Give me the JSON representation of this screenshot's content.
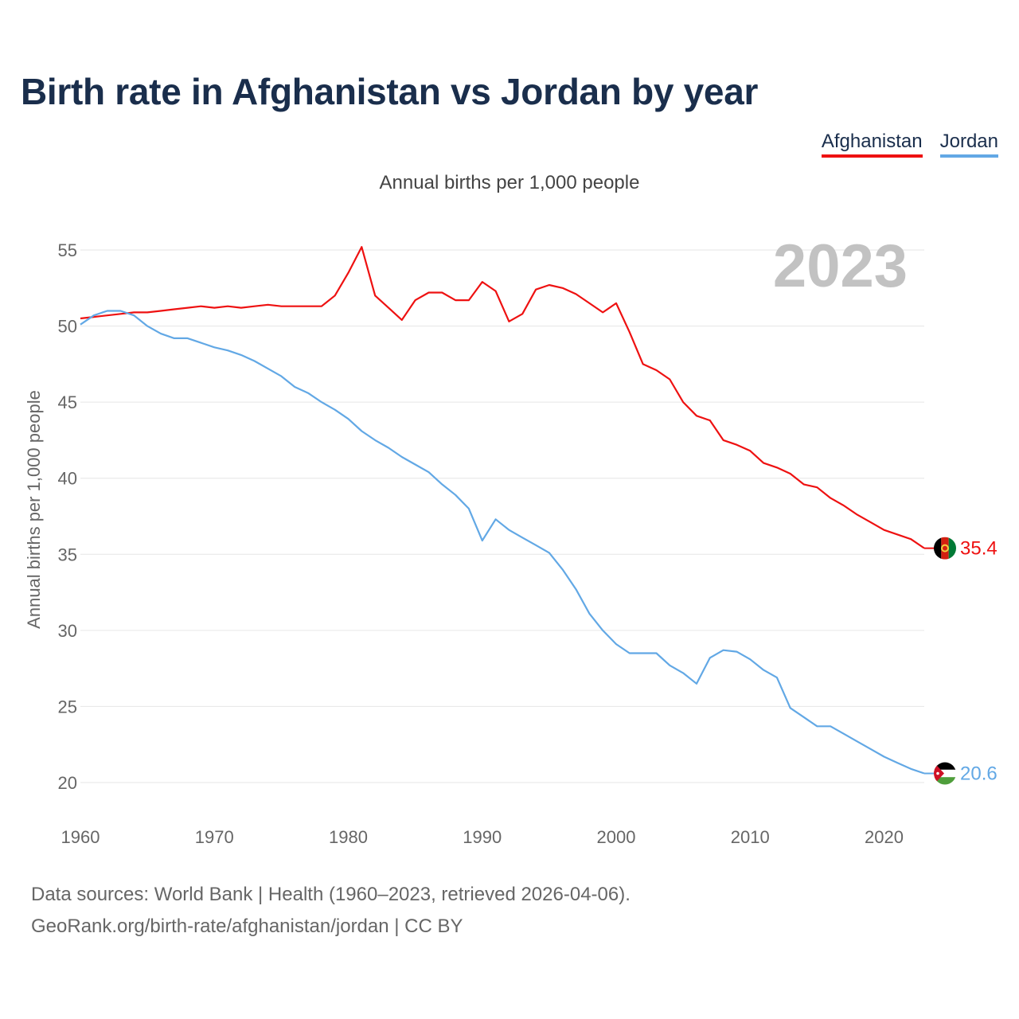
{
  "title": "Birth rate in Afghanistan vs Jordan by year",
  "legend": [
    {
      "name": "Afghanistan",
      "color": "#ee1111"
    },
    {
      "name": "Jordan",
      "color": "#62a8e5"
    }
  ],
  "subtitle": "Annual births per 1,000 people",
  "watermark_year": "2023",
  "footer": {
    "line1": "Data sources: World Bank | Health (1960–2023, retrieved 2026-04-06).",
    "line2": "GeoRank.org/birth-rate/afghanistan/jordan | CC BY"
  },
  "chart_data": {
    "type": "line",
    "title": "Birth rate in Afghanistan vs Jordan by year",
    "xlabel": "",
    "ylabel": "Annual births per 1,000 people",
    "xlim": [
      1960,
      2023
    ],
    "ylim": [
      20,
      55
    ],
    "xticks": [
      1960,
      1970,
      1980,
      1990,
      2000,
      2010,
      2020
    ],
    "yticks": [
      20,
      25,
      30,
      35,
      40,
      45,
      50,
      55
    ],
    "grid": true,
    "legend_position": "top-right",
    "x": [
      1960,
      1961,
      1962,
      1963,
      1964,
      1965,
      1966,
      1967,
      1968,
      1969,
      1970,
      1971,
      1972,
      1973,
      1974,
      1975,
      1976,
      1977,
      1978,
      1979,
      1980,
      1981,
      1982,
      1983,
      1984,
      1985,
      1986,
      1987,
      1988,
      1989,
      1990,
      1991,
      1992,
      1993,
      1994,
      1995,
      1996,
      1997,
      1998,
      1999,
      2000,
      2001,
      2002,
      2003,
      2004,
      2005,
      2006,
      2007,
      2008,
      2009,
      2010,
      2011,
      2012,
      2013,
      2014,
      2015,
      2016,
      2017,
      2018,
      2019,
      2020,
      2021,
      2022,
      2023
    ],
    "series": [
      {
        "name": "Afghanistan",
        "color": "#ee1111",
        "end_label": "35.4",
        "values": [
          50.5,
          50.6,
          50.7,
          50.8,
          50.9,
          50.9,
          51.0,
          51.1,
          51.2,
          51.3,
          51.2,
          51.3,
          51.2,
          51.3,
          51.4,
          51.3,
          51.3,
          51.3,
          51.3,
          52.0,
          53.5,
          55.2,
          52.0,
          51.2,
          50.4,
          51.7,
          52.2,
          52.2,
          51.7,
          51.7,
          52.9,
          52.3,
          50.3,
          50.8,
          52.4,
          52.7,
          52.5,
          52.1,
          51.5,
          50.9,
          51.5,
          49.6,
          47.5,
          47.1,
          46.5,
          45.0,
          44.1,
          43.8,
          42.5,
          42.2,
          41.8,
          41.0,
          40.7,
          40.3,
          39.6,
          39.4,
          38.7,
          38.2,
          37.6,
          37.1,
          36.6,
          36.3,
          36.0,
          35.4
        ]
      },
      {
        "name": "Jordan",
        "color": "#62a8e5",
        "end_label": "20.6",
        "values": [
          50.1,
          50.7,
          51.0,
          51.0,
          50.7,
          50.0,
          49.5,
          49.2,
          49.2,
          48.9,
          48.6,
          48.4,
          48.1,
          47.7,
          47.2,
          46.7,
          46.0,
          45.6,
          45.0,
          44.5,
          43.9,
          43.1,
          42.5,
          42.0,
          41.4,
          40.9,
          40.4,
          39.6,
          38.9,
          38.0,
          35.9,
          37.3,
          36.6,
          36.1,
          35.6,
          35.1,
          34.0,
          32.7,
          31.1,
          30.0,
          29.1,
          28.5,
          28.5,
          28.5,
          27.7,
          27.2,
          26.5,
          28.2,
          28.7,
          28.6,
          28.1,
          27.4,
          26.9,
          24.9,
          24.3,
          23.7,
          23.7,
          23.2,
          22.7,
          22.2,
          21.7,
          21.3,
          20.9,
          20.6
        ]
      }
    ]
  }
}
